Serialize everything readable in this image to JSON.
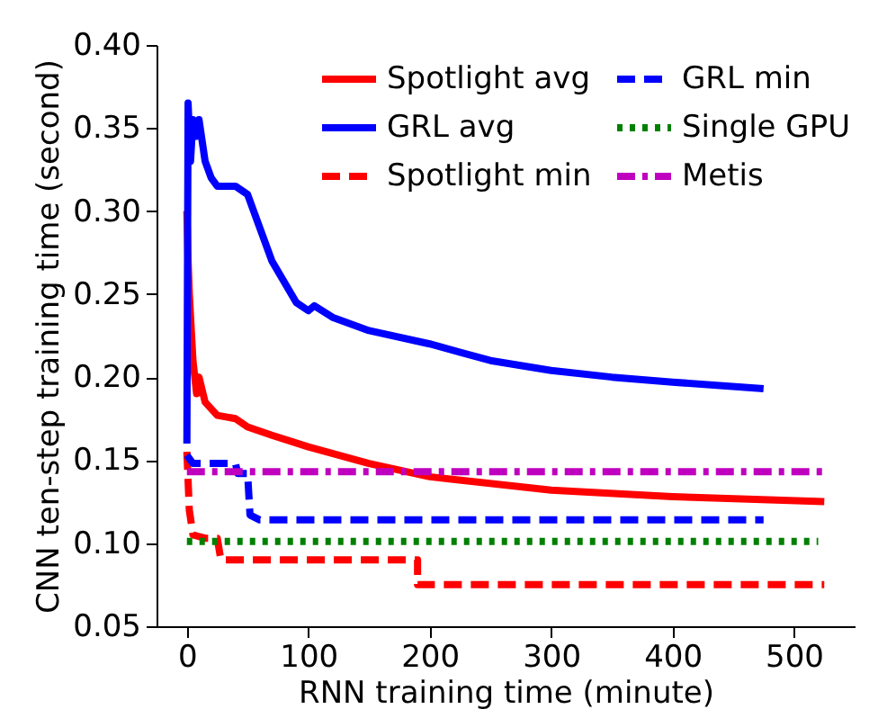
{
  "chart_data": {
    "type": "line",
    "xlabel": "RNN training time (minute)",
    "ylabel": "CNN ten-step training time (second)",
    "xlim": [
      -25,
      550
    ],
    "xticks": [
      0,
      100,
      200,
      300,
      400,
      500
    ],
    "ylim": [
      0.05,
      0.4
    ],
    "yticks": [
      0.05,
      {
        "value": 0.1,
        "label": "0.10"
      },
      0.15,
      {
        "value": 0.2,
        "label": "0.20"
      },
      0.25,
      {
        "value": 0.3,
        "label": "0.30"
      },
      0.35,
      {
        "value": 0.4,
        "label": "0.40"
      }
    ],
    "grid": false,
    "legend": "top right",
    "marker": "none",
    "series": [
      {
        "name": "Spotlight avg",
        "color": "#ff0000",
        "line_style": "solid",
        "x": [
          0,
          1,
          2,
          5,
          8,
          10,
          15,
          25,
          40,
          50,
          70,
          100,
          150,
          200,
          300,
          400,
          525
        ],
        "values": [
          0.3,
          0.27,
          0.25,
          0.21,
          0.19,
          0.2,
          0.185,
          0.177,
          0.175,
          0.17,
          0.165,
          0.158,
          0.148,
          0.14,
          0.132,
          0.128,
          0.125
        ]
      },
      {
        "name": "GRL avg",
        "color": "#0000ff",
        "line_style": "solid",
        "x": [
          0,
          1,
          3,
          5,
          8,
          10,
          15,
          20,
          25,
          40,
          50,
          55,
          70,
          90,
          100,
          105,
          120,
          150,
          200,
          250,
          300,
          350,
          400,
          475
        ],
        "values": [
          0.16,
          0.365,
          0.33,
          0.355,
          0.345,
          0.355,
          0.33,
          0.32,
          0.315,
          0.315,
          0.31,
          0.3,
          0.27,
          0.245,
          0.24,
          0.243,
          0.236,
          0.228,
          0.22,
          0.21,
          0.204,
          0.2,
          0.197,
          0.193
        ]
      },
      {
        "name": "Spotlight min",
        "color": "#ff0000",
        "line_style": "dashed",
        "x": [
          0,
          2,
          5,
          15,
          25,
          28,
          190,
          190,
          525
        ],
        "values": [
          0.155,
          0.12,
          0.105,
          0.103,
          0.103,
          0.09,
          0.09,
          0.075,
          0.075
        ]
      },
      {
        "name": "GRL min",
        "color": "#0000ff",
        "line_style": "dashed",
        "x": [
          0,
          5,
          40,
          42,
          50,
          52,
          60,
          475
        ],
        "values": [
          0.153,
          0.148,
          0.148,
          0.142,
          0.142,
          0.117,
          0.114,
          0.114
        ]
      },
      {
        "name": "Single GPU",
        "color": "#008000",
        "line_style": "dotted",
        "x": [
          0,
          520
        ],
        "values": [
          0.101,
          0.101
        ]
      },
      {
        "name": "Metis",
        "color": "#bf00bf",
        "line_style": "dashdot",
        "x": [
          0,
          525
        ],
        "values": [
          0.143,
          0.143
        ]
      }
    ]
  }
}
